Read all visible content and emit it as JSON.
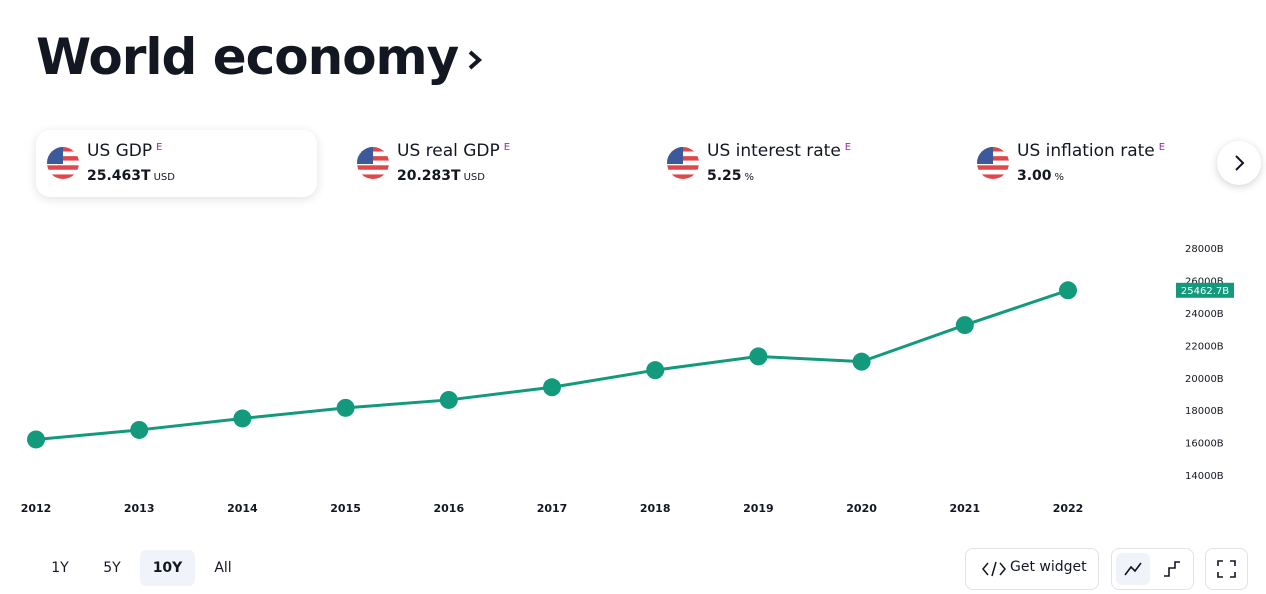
{
  "header": {
    "title": "World economy"
  },
  "indicators": [
    {
      "name": "US GDP",
      "badge": "E",
      "value": "25.463T",
      "unit": "USD"
    },
    {
      "name": "US real GDP",
      "badge": "E",
      "value": "20.283T",
      "unit": "USD"
    },
    {
      "name": "US interest rate",
      "badge": "E",
      "value": "5.25",
      "unit": "%"
    },
    {
      "name": "US inflation rate",
      "badge": "E",
      "value": "3.00",
      "unit": "%"
    }
  ],
  "chart_data": {
    "type": "line",
    "categories": [
      "2012",
      "2013",
      "2014",
      "2015",
      "2016",
      "2017",
      "2018",
      "2019",
      "2020",
      "2021",
      "2022"
    ],
    "values": [
      16254,
      16843,
      17551,
      18206,
      18695,
      19477,
      20533,
      21381,
      21060,
      23315,
      25462.7
    ],
    "value_labels": [
      null,
      null,
      null,
      null,
      null,
      null,
      null,
      null,
      null,
      null,
      "25462.7B"
    ],
    "color": "#139a7c",
    "ylim": [
      13000,
      29000
    ],
    "yticks": [
      {
        "value": 14000,
        "label": "14000B"
      },
      {
        "value": 16000,
        "label": "16000B"
      },
      {
        "value": 18000,
        "label": "18000B"
      },
      {
        "value": 20000,
        "label": "20000B"
      },
      {
        "value": 22000,
        "label": "22000B"
      },
      {
        "value": 24000,
        "label": "24000B"
      },
      {
        "value": 26000,
        "label": "26000B"
      },
      {
        "value": 28000,
        "label": "28000B"
      }
    ],
    "grid": false
  },
  "range_buttons": [
    "1Y",
    "5Y",
    "10Y",
    "All"
  ],
  "widget_button": "Get widget"
}
